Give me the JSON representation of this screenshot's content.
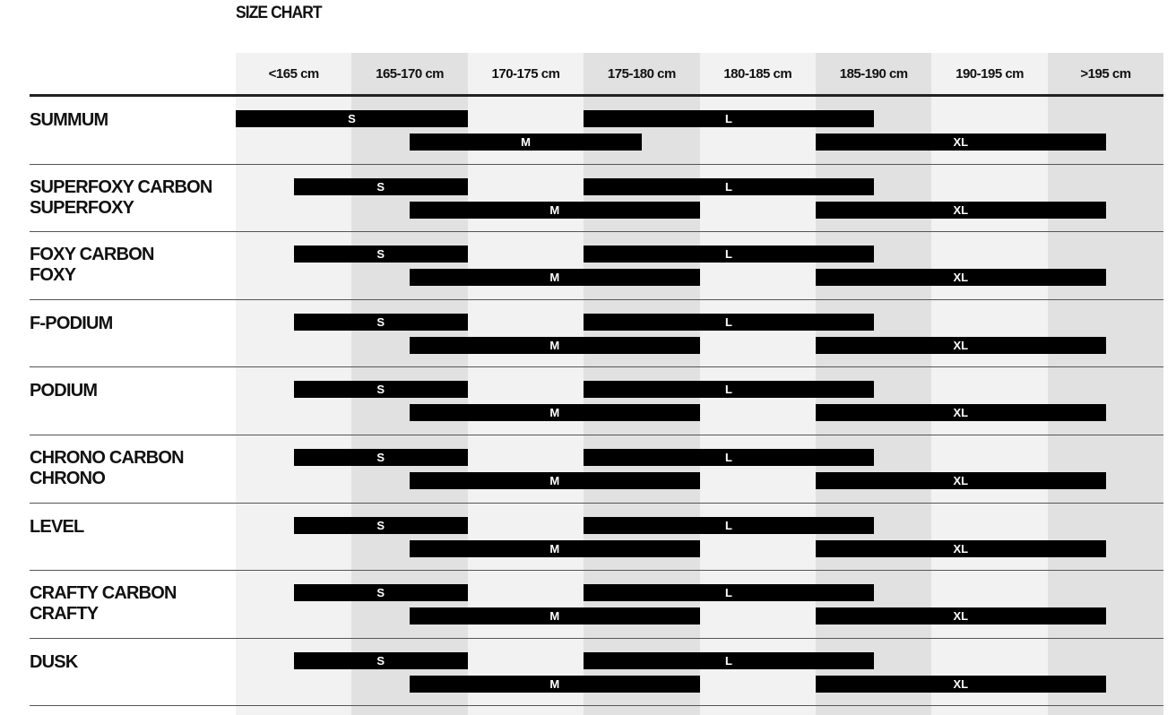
{
  "chart_data": {
    "type": "table",
    "title": "SIZE CHART",
    "columns": [
      "<165 cm",
      "165-170 cm",
      "170-175 cm",
      "175-180 cm",
      "180-185 cm",
      "185-190 cm",
      "190-195 cm",
      ">195 cm"
    ],
    "colors": {
      "bar": "#000000",
      "bar_text": "#ffffff",
      "column_light": "#f2f2f2",
      "column_dark": "#e1e1e1"
    },
    "note": "bar ranges given as column positions (0 = start of '<165 cm', 8 = end of '>195 cm')",
    "rows": [
      {
        "models": [
          "SUMMUM"
        ],
        "sizes": [
          {
            "size": "S",
            "from": 0,
            "to": 2
          },
          {
            "size": "M",
            "from": 1.5,
            "to": 3.5
          },
          {
            "size": "L",
            "from": 3,
            "to": 5.5
          },
          {
            "size": "XL",
            "from": 5,
            "to": 7.5
          }
        ]
      },
      {
        "models": [
          "SUPERFOXY CARBON",
          "SUPERFOXY"
        ],
        "sizes": [
          {
            "size": "S",
            "from": 0.5,
            "to": 2
          },
          {
            "size": "M",
            "from": 1.5,
            "to": 4
          },
          {
            "size": "L",
            "from": 3,
            "to": 5.5
          },
          {
            "size": "XL",
            "from": 5,
            "to": 7.5
          }
        ]
      },
      {
        "models": [
          "FOXY CARBON",
          "FOXY"
        ],
        "sizes": [
          {
            "size": "S",
            "from": 0.5,
            "to": 2
          },
          {
            "size": "M",
            "from": 1.5,
            "to": 4
          },
          {
            "size": "L",
            "from": 3,
            "to": 5.5
          },
          {
            "size": "XL",
            "from": 5,
            "to": 7.5
          }
        ]
      },
      {
        "models": [
          "F-PODIUM"
        ],
        "sizes": [
          {
            "size": "S",
            "from": 0.5,
            "to": 2
          },
          {
            "size": "M",
            "from": 1.5,
            "to": 4
          },
          {
            "size": "L",
            "from": 3,
            "to": 5.5
          },
          {
            "size": "XL",
            "from": 5,
            "to": 7.5
          }
        ]
      },
      {
        "models": [
          "PODIUM"
        ],
        "sizes": [
          {
            "size": "S",
            "from": 0.5,
            "to": 2
          },
          {
            "size": "M",
            "from": 1.5,
            "to": 4
          },
          {
            "size": "L",
            "from": 3,
            "to": 5.5
          },
          {
            "size": "XL",
            "from": 5,
            "to": 7.5
          }
        ]
      },
      {
        "models": [
          "CHRONO CARBON",
          "CHRONO"
        ],
        "sizes": [
          {
            "size": "S",
            "from": 0.5,
            "to": 2
          },
          {
            "size": "M",
            "from": 1.5,
            "to": 4
          },
          {
            "size": "L",
            "from": 3,
            "to": 5.5
          },
          {
            "size": "XL",
            "from": 5,
            "to": 7.5
          }
        ]
      },
      {
        "models": [
          "LEVEL"
        ],
        "sizes": [
          {
            "size": "S",
            "from": 0.5,
            "to": 2
          },
          {
            "size": "M",
            "from": 1.5,
            "to": 4
          },
          {
            "size": "L",
            "from": 3,
            "to": 5.5
          },
          {
            "size": "XL",
            "from": 5,
            "to": 7.5
          }
        ]
      },
      {
        "models": [
          "CRAFTY CARBON",
          "CRAFTY"
        ],
        "sizes": [
          {
            "size": "S",
            "from": 0.5,
            "to": 2
          },
          {
            "size": "M",
            "from": 1.5,
            "to": 4
          },
          {
            "size": "L",
            "from": 3,
            "to": 5.5
          },
          {
            "size": "XL",
            "from": 5,
            "to": 7.5
          }
        ]
      },
      {
        "models": [
          "DUSK"
        ],
        "sizes": [
          {
            "size": "S",
            "from": 0.5,
            "to": 2
          },
          {
            "size": "M",
            "from": 1.5,
            "to": 4
          },
          {
            "size": "L",
            "from": 3,
            "to": 5.5
          },
          {
            "size": "XL",
            "from": 5,
            "to": 7.5
          }
        ]
      }
    ]
  }
}
